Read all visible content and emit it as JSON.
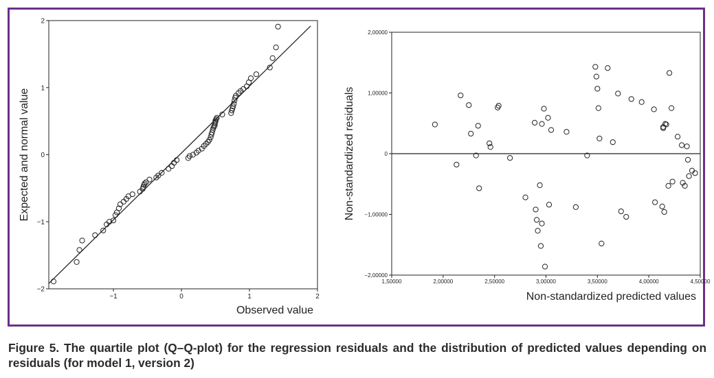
{
  "caption": "Figure 5. The quartile plot (Q–Q-plot) for the regression residuals and the distribution of predicted values depending on residuals (for model 1, version 2)",
  "colors": {
    "border": "#6b2f8a",
    "ink": "#222222"
  },
  "chart_data": [
    {
      "type": "scatter",
      "title": "",
      "xlabel": "Observed value",
      "ylabel": "Expected and normal value",
      "xlim": [
        -1.95,
        2
      ],
      "ylim": [
        -2,
        2
      ],
      "xticks": [
        -1,
        0,
        1,
        2
      ],
      "yticks": [
        -2,
        -1,
        0,
        1,
        2
      ],
      "xtick_labels": [
        "−1",
        "0",
        "1",
        "2"
      ],
      "ytick_labels": [
        "−2",
        "−1",
        "0",
        "1",
        "2"
      ],
      "reference_line": {
        "x": [
          -1.95,
          1.9
        ],
        "y": [
          -1.92,
          1.92
        ]
      },
      "points": {
        "x": [
          -1.88,
          -1.54,
          -1.5,
          -1.46,
          -1.27,
          -1.15,
          -1.1,
          -1.06,
          -1.0,
          -0.97,
          -0.95,
          -0.92,
          -0.9,
          -0.85,
          -0.81,
          -0.78,
          -0.72,
          -0.61,
          -0.57,
          -0.56,
          -0.55,
          -0.54,
          -0.52,
          -0.47,
          -0.37,
          -0.34,
          -0.29,
          -0.19,
          -0.14,
          -0.11,
          -0.07,
          0.1,
          0.12,
          0.17,
          0.22,
          0.25,
          0.3,
          0.33,
          0.36,
          0.39,
          0.41,
          0.43,
          0.44,
          0.45,
          0.46,
          0.47,
          0.48,
          0.49,
          0.49,
          0.5,
          0.5,
          0.51,
          0.52,
          0.6,
          0.73,
          0.74,
          0.75,
          0.76,
          0.77,
          0.78,
          0.79,
          0.8,
          0.84,
          0.87,
          0.91,
          0.96,
          0.99,
          1.02,
          1.1,
          1.3,
          1.34,
          1.39,
          1.42
        ],
        "y": [
          -1.89,
          -1.6,
          -1.42,
          -1.28,
          -1.2,
          -1.13,
          -1.04,
          -1.0,
          -0.98,
          -0.9,
          -0.86,
          -0.8,
          -0.74,
          -0.7,
          -0.66,
          -0.62,
          -0.59,
          -0.55,
          -0.51,
          -0.48,
          -0.45,
          -0.43,
          -0.41,
          -0.37,
          -0.34,
          -0.31,
          -0.27,
          -0.21,
          -0.17,
          -0.12,
          -0.08,
          -0.05,
          -0.02,
          0.0,
          0.03,
          0.06,
          0.09,
          0.13,
          0.16,
          0.19,
          0.22,
          0.26,
          0.3,
          0.33,
          0.37,
          0.4,
          0.42,
          0.44,
          0.47,
          0.49,
          0.51,
          0.53,
          0.55,
          0.6,
          0.62,
          0.66,
          0.69,
          0.72,
          0.76,
          0.81,
          0.85,
          0.88,
          0.92,
          0.95,
          0.98,
          1.02,
          1.08,
          1.14,
          1.2,
          1.3,
          1.44,
          1.6,
          1.91
        ]
      }
    },
    {
      "type": "scatter",
      "title": "",
      "xlabel": "Non-standardized predicted values",
      "ylabel": "Non-standardized residuals",
      "xlim": [
        1.5,
        4.5
      ],
      "ylim": [
        -2,
        2
      ],
      "xticks": [
        1.5,
        2.0,
        2.5,
        3.0,
        3.5,
        4.0,
        4.5
      ],
      "yticks": [
        -2,
        -1,
        0,
        1,
        2
      ],
      "xtick_labels": [
        "1,50000",
        "2,00000",
        "2,50000",
        "3,00000",
        "3,50000",
        "4,00000",
        "4,50000"
      ],
      "ytick_labels": [
        "−2,00000",
        "−1,00000",
        "0",
        "1,00000",
        "2,00000"
      ],
      "reference_line": {
        "y": 0
      },
      "points": {
        "x": [
          1.92,
          2.13,
          2.17,
          2.25,
          2.27,
          2.32,
          2.34,
          2.35,
          2.45,
          2.46,
          2.53,
          2.54,
          2.65,
          2.8,
          2.89,
          2.9,
          2.91,
          2.92,
          2.94,
          2.95,
          2.96,
          2.96,
          2.98,
          2.99,
          3.02,
          3.03,
          3.05,
          3.2,
          3.29,
          3.4,
          3.48,
          3.49,
          3.5,
          3.51,
          3.52,
          3.54,
          3.6,
          3.65,
          3.7,
          3.73,
          3.78,
          3.83,
          3.93,
          4.05,
          4.06,
          4.13,
          4.14,
          4.14,
          4.15,
          4.16,
          4.17,
          4.19,
          4.2,
          4.22,
          4.23,
          4.28,
          4.32,
          4.33,
          4.35,
          4.37,
          4.38,
          4.39,
          4.42,
          4.45
        ],
        "y": [
          0.48,
          -0.18,
          0.96,
          0.8,
          0.33,
          -0.03,
          0.46,
          -0.57,
          0.17,
          0.11,
          0.76,
          0.79,
          -0.07,
          -0.72,
          0.51,
          -0.92,
          -1.09,
          -1.27,
          -0.52,
          -1.52,
          0.49,
          -1.15,
          0.74,
          -1.86,
          0.59,
          -0.84,
          0.39,
          0.36,
          -0.88,
          -0.03,
          1.43,
          1.27,
          1.07,
          0.75,
          0.25,
          -1.48,
          1.41,
          0.19,
          0.99,
          -0.95,
          -1.04,
          0.9,
          0.85,
          0.73,
          -0.8,
          -0.87,
          0.44,
          0.42,
          -0.96,
          0.49,
          0.48,
          -0.53,
          1.33,
          0.75,
          -0.46,
          0.28,
          0.14,
          -0.48,
          -0.53,
          0.12,
          -0.1,
          -0.37,
          -0.28,
          -0.32
        ]
      }
    }
  ]
}
